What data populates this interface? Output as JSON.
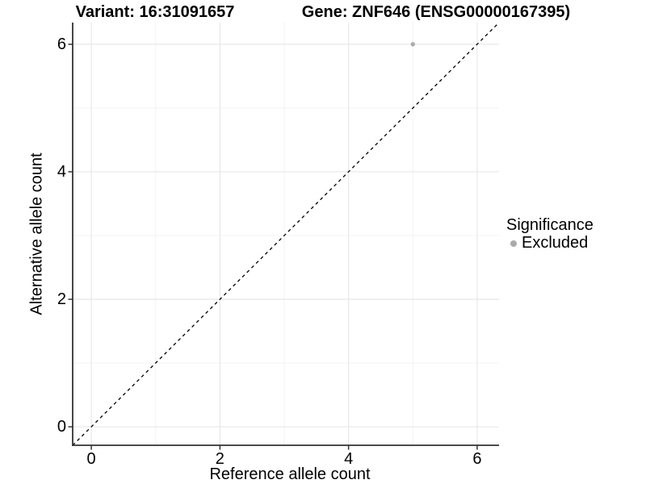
{
  "header": {
    "title_left": "Variant: 16:31091657",
    "title_right": "Gene: ZNF646 (ENSG00000167395)"
  },
  "chart_data": {
    "type": "scatter",
    "title_left": "Variant: 16:31091657",
    "title_right": "Gene: ZNF646 (ENSG00000167395)",
    "xlabel": "Reference allele count",
    "ylabel": "Alternative allele count",
    "xlim": [
      -0.29,
      6.34
    ],
    "ylim": [
      -0.29,
      6.34
    ],
    "x_major_ticks": [
      0,
      2,
      4,
      6
    ],
    "y_major_ticks": [
      0,
      2,
      4,
      6
    ],
    "x_minor_ticks": [
      1,
      3,
      5
    ],
    "y_minor_ticks": [
      1,
      3,
      5
    ],
    "grid": "on",
    "reference_line": {
      "type": "identity",
      "style": "dashed",
      "color": "#000000",
      "from": [
        -0.29,
        -0.29
      ],
      "to": [
        6.34,
        6.34
      ]
    },
    "series": [
      {
        "name": "Excluded",
        "marker": "circle",
        "color": "#aaaaaa",
        "points": [
          [
            5,
            6
          ]
        ]
      }
    ],
    "legend": {
      "title": "Significance",
      "position": "right",
      "items": [
        {
          "label": "Excluded",
          "color": "#aaaaaa"
        }
      ]
    }
  },
  "colors": {
    "background": "#ffffff",
    "grid_major": "#e8e8e8",
    "grid_minor": "#f3f3f3",
    "axis": "#333333",
    "text": "#000000"
  }
}
